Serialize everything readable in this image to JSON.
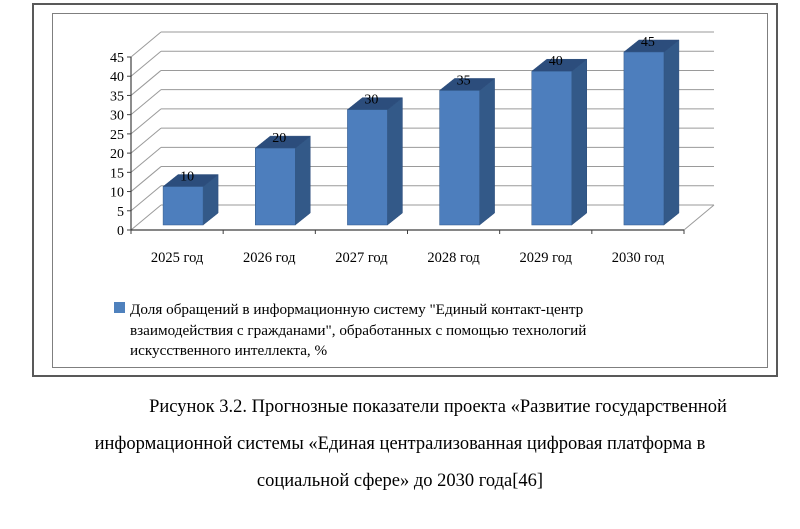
{
  "figure": {
    "caption_lines": [
      "Рисунок 3.2. Прогнозные показатели проекта «Развитие государственной",
      "информационной системы «Единая централизованная цифровая платформа в",
      "социальной сфере» до 2030 года[46]"
    ]
  },
  "legend": {
    "marker_color": "#4f81bd",
    "lines": [
      "Доля обращений в информационную систему \"Единый контакт-центр",
      "взаимодействия с гражданами\", обработанных с помощью технологий",
      "искусственного интеллекта, %"
    ]
  },
  "colors": {
    "bar_front": "#4d7ebd",
    "bar_top": "#2c4d7c",
    "bar_side": "#335988",
    "gridline": "#9a9a9a",
    "axis": "#3f3f3f",
    "frame_outer": "#595959",
    "frame_inner": "#7f7f7f",
    "text": "#000000"
  },
  "chart_data": {
    "type": "bar",
    "subtype": "3d-column",
    "title": "",
    "xlabel": "",
    "ylabel": "",
    "categories": [
      "2025 год",
      "2026 год",
      "2027 год",
      "2028 год",
      "2029 год",
      "2030 год"
    ],
    "series": [
      {
        "name": "Доля обращений в информационную систему \"Единый контакт-центр взаимодействия с гражданами\", обработанных с помощью технологий искусственного интеллекта, %",
        "values": [
          10,
          20,
          30,
          35,
          40,
          45
        ],
        "color": "#4f81bd"
      }
    ],
    "data_labels_shown": true,
    "ylim": [
      0,
      45
    ],
    "ytick_step": 5,
    "yticks": [
      0,
      5,
      10,
      15,
      20,
      25,
      30,
      35,
      40,
      45
    ],
    "grid": true,
    "legend_position": "bottom"
  }
}
